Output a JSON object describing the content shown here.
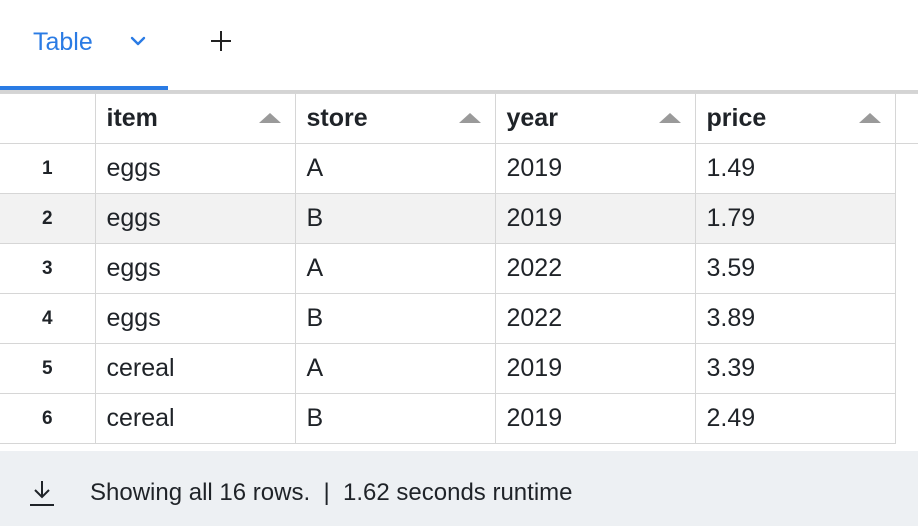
{
  "tabs": {
    "active_label": "Table",
    "chevron_icon": "chevron-down-icon",
    "add_icon": "plus-icon",
    "accent_color": "#2a7be4"
  },
  "table": {
    "columns": [
      "item",
      "store",
      "year",
      "price"
    ],
    "sort_icon": "sort-ascending-icon",
    "rows": [
      {
        "n": "1",
        "cells": [
          "eggs",
          "A",
          "2019",
          "1.49"
        ]
      },
      {
        "n": "2",
        "cells": [
          "eggs",
          "B",
          "2019",
          "1.79"
        ]
      },
      {
        "n": "3",
        "cells": [
          "eggs",
          "A",
          "2022",
          "3.59"
        ]
      },
      {
        "n": "4",
        "cells": [
          "eggs",
          "B",
          "2022",
          "3.89"
        ]
      },
      {
        "n": "5",
        "cells": [
          "cereal",
          "A",
          "2019",
          "3.39"
        ]
      },
      {
        "n": "6",
        "cells": [
          "cereal",
          "B",
          "2019",
          "2.49"
        ]
      }
    ],
    "highlighted_row": "2"
  },
  "footer": {
    "status": "Showing all 16 rows.  |  1.62 seconds runtime",
    "download_icon": "download-icon"
  }
}
